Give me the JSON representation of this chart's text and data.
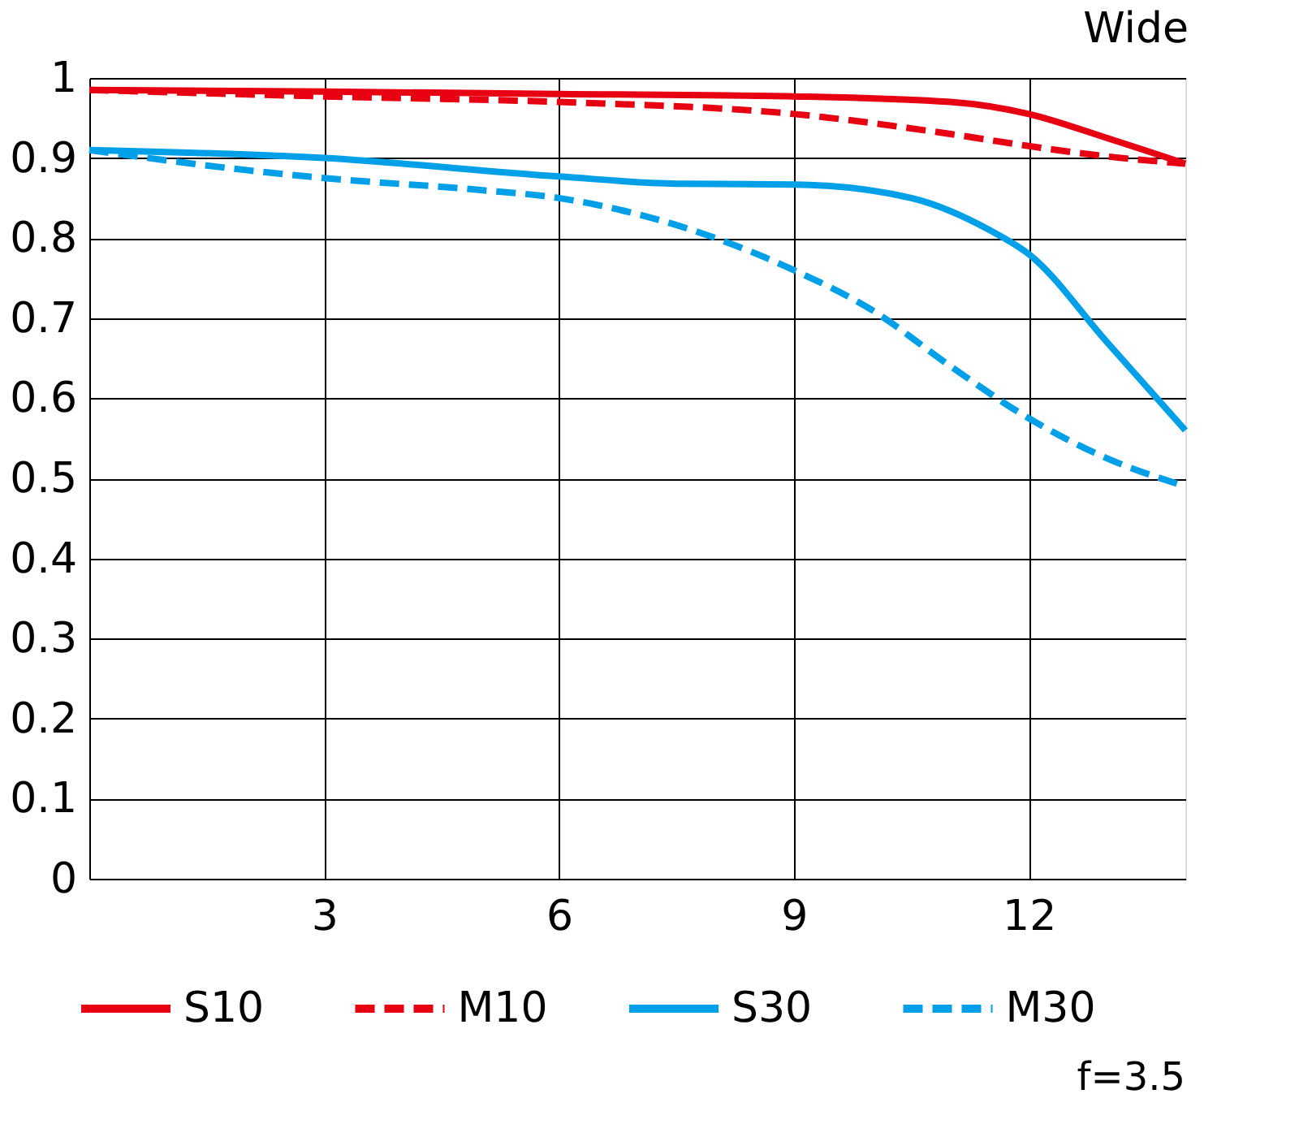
{
  "chart_data": {
    "type": "line",
    "title": "Wide",
    "annotations": [
      "f=3.5"
    ],
    "xlim": [
      0,
      14
    ],
    "xticks": [
      3,
      6,
      9,
      12
    ],
    "ylim": [
      0,
      1
    ],
    "yticks": [
      0,
      0.1,
      0.2,
      0.3,
      0.4,
      0.5,
      0.6,
      0.7,
      0.8,
      0.9,
      1
    ],
    "grid": true,
    "legend": "bottom",
    "marker": "none",
    "series": [
      {
        "name": "S10",
        "color": "#e60012",
        "line_style": "solid",
        "x": [
          0,
          3,
          6,
          9,
          11,
          12,
          13,
          14
        ],
        "values": [
          0.985,
          0.983,
          0.98,
          0.977,
          0.97,
          0.955,
          0.925,
          0.893
        ]
      },
      {
        "name": "M10",
        "color": "#e60012",
        "line_style": "dashed",
        "x": [
          0,
          3,
          6,
          9,
          11,
          12,
          13,
          14
        ],
        "values": [
          0.985,
          0.977,
          0.97,
          0.955,
          0.93,
          0.915,
          0.902,
          0.893
        ]
      },
      {
        "name": "S30",
        "color": "#00a0e9",
        "line_style": "solid",
        "x": [
          0,
          3,
          6,
          7.5,
          9,
          10.5,
          11.5,
          12,
          13,
          14
        ],
        "values": [
          0.91,
          0.9,
          0.877,
          0.868,
          0.867,
          0.85,
          0.81,
          0.78,
          0.67,
          0.56
        ]
      },
      {
        "name": "M30",
        "color": "#00a0e9",
        "line_style": "dashed",
        "x": [
          0,
          2,
          3,
          5,
          6,
          7,
          8,
          9,
          10,
          11,
          12,
          13,
          14
        ],
        "values": [
          0.91,
          0.885,
          0.875,
          0.86,
          0.85,
          0.83,
          0.8,
          0.76,
          0.71,
          0.64,
          0.575,
          0.525,
          0.49
        ]
      }
    ]
  }
}
